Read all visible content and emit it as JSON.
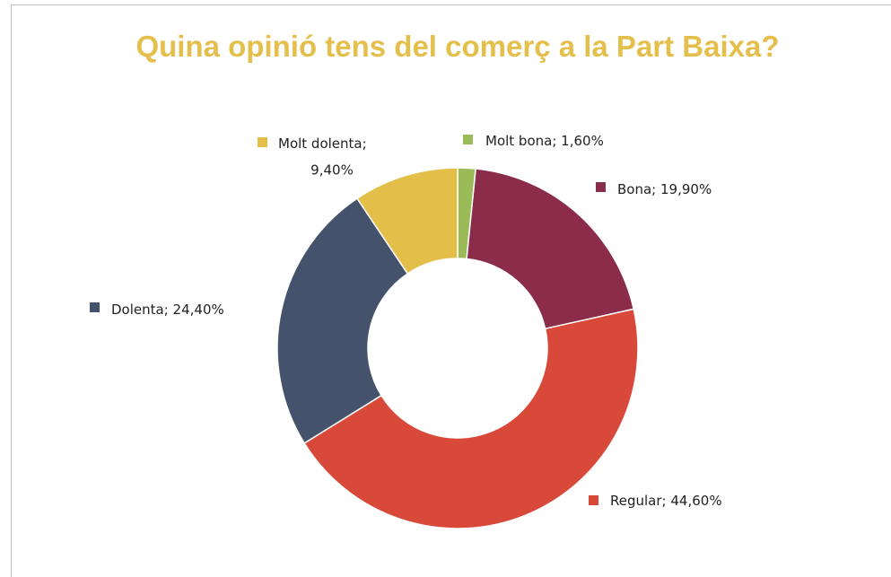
{
  "chart_data": {
    "type": "donut",
    "title": "Quina opinió tens del comerç a la Part Baixa?",
    "categories": [
      "Molt bona",
      "Bona",
      "Regular",
      "Dolenta",
      "Molt dolenta"
    ],
    "values": [
      1.6,
      19.9,
      44.6,
      24.4,
      9.4
    ],
    "value_labels": [
      "1,60%",
      "19,90%",
      "44,60%",
      "24,40%",
      "9,40%"
    ],
    "label_separator": "; ",
    "colors": [
      "#9bbb59",
      "#8b2c4a",
      "#d9493a",
      "#44536b",
      "#e3bf4a"
    ]
  }
}
